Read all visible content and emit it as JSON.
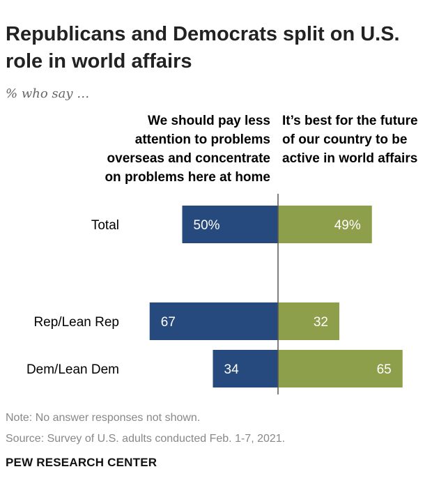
{
  "title": "Republicans and Democrats split on U.S. role in world affairs",
  "subtitle": "% who say …",
  "column_headers": {
    "left": "We should pay less attention to problems overseas and concentrate on problems here at home",
    "right": "It’s best for the future of our country to be active in world affairs"
  },
  "chart_data": {
    "type": "bar",
    "orientation": "diverging-horizontal",
    "categories": [
      "Total",
      "Rep/Lean Rep",
      "Dem/Lean Dem"
    ],
    "series": [
      {
        "name": "We should pay less attention to problems overseas and concentrate on problems here at home",
        "values": [
          50,
          67,
          34
        ],
        "labels": [
          "50%",
          "67",
          "34"
        ],
        "color": "#264a7d"
      },
      {
        "name": "It’s best for the future of our country to be active in world affairs",
        "values": [
          49,
          32,
          65
        ],
        "labels": [
          "49%",
          "32",
          "65"
        ],
        "color": "#8d9f4a"
      }
    ],
    "xlim": [
      0,
      100
    ]
  },
  "note": "Note: No answer responses not shown.",
  "source": "Source: Survey of U.S. adults conducted Feb. 1-7, 2021.",
  "brand": "PEW RESEARCH CENTER",
  "colors": {
    "left_bar": "#264a7d",
    "right_bar": "#8d9f4a",
    "axis": "#555555"
  }
}
